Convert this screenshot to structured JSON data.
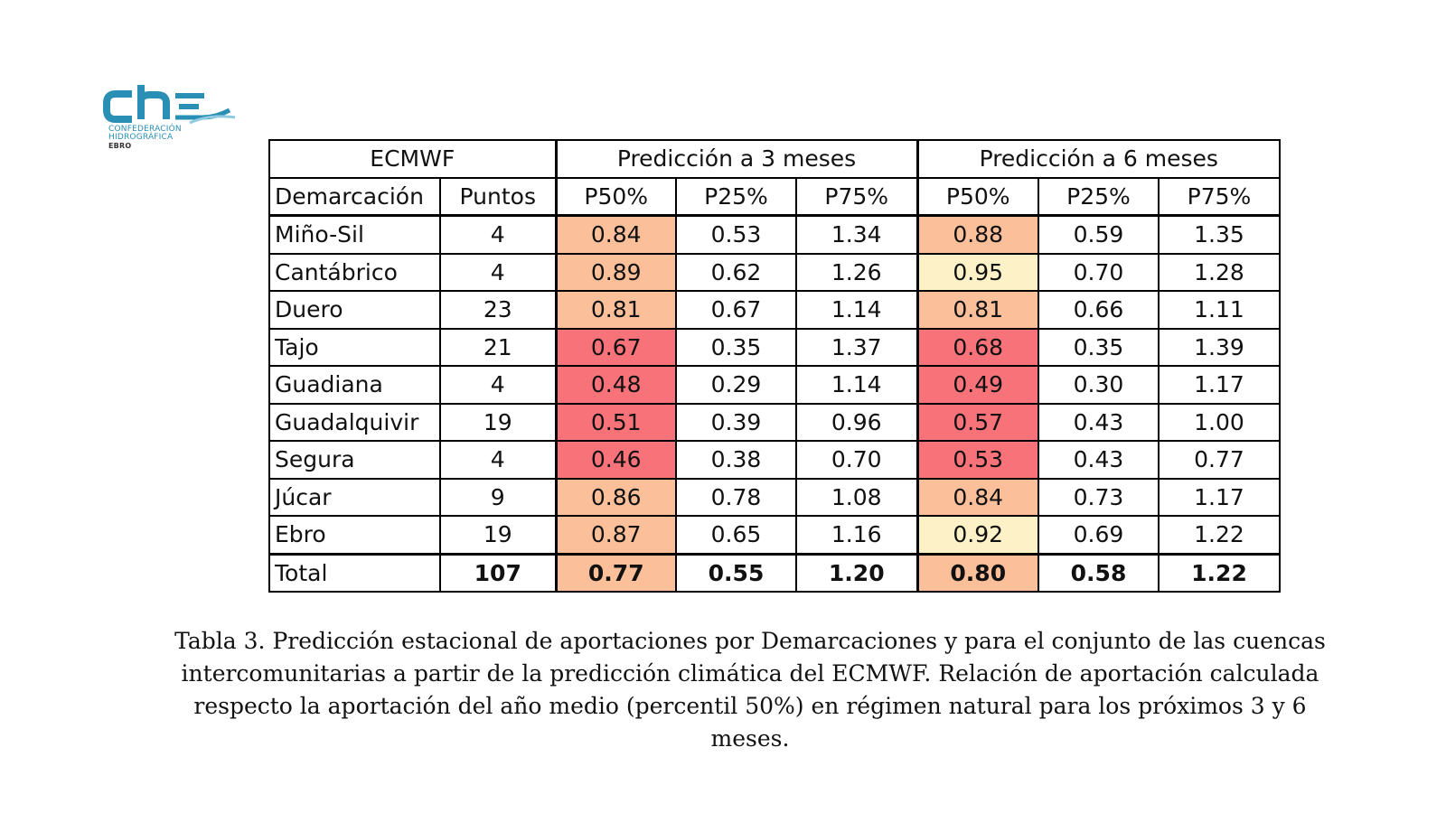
{
  "logo": {
    "text": "che",
    "line1": "CONFEDERACIÓN",
    "line2": "HIDROGRÁFICA",
    "line3": "EBRO",
    "color": "#2a8fb5"
  },
  "table": {
    "corner_label": "ECMWF",
    "group_headers": [
      "Predicción a 3 meses",
      "Predicción a 6 meses"
    ],
    "column_headers": [
      "Demarcación",
      "Puntos",
      "P50%",
      "P25%",
      "P75%",
      "P50%",
      "P25%",
      "P75%"
    ],
    "rows": [
      {
        "name": "Miño-Sil",
        "puntos": "4",
        "m3": [
          "0.84",
          "0.53",
          "1.34"
        ],
        "m6": [
          "0.88",
          "0.59",
          "1.35"
        ],
        "c3": "#fbbf9a",
        "c6": "#fbbf9a"
      },
      {
        "name": "Cantábrico",
        "puntos": "4",
        "m3": [
          "0.89",
          "0.62",
          "1.26"
        ],
        "m6": [
          "0.95",
          "0.70",
          "1.28"
        ],
        "c3": "#fbbf9a",
        "c6": "#fdf1c8"
      },
      {
        "name": "Duero",
        "puntos": "23",
        "m3": [
          "0.81",
          "0.67",
          "1.14"
        ],
        "m6": [
          "0.81",
          "0.66",
          "1.11"
        ],
        "c3": "#fbbf9a",
        "c6": "#fbbf9a"
      },
      {
        "name": "Tajo",
        "puntos": "21",
        "m3": [
          "0.67",
          "0.35",
          "1.37"
        ],
        "m6": [
          "0.68",
          "0.35",
          "1.39"
        ],
        "c3": "#f8727a",
        "c6": "#f8727a"
      },
      {
        "name": "Guadiana",
        "puntos": "4",
        "m3": [
          "0.48",
          "0.29",
          "1.14"
        ],
        "m6": [
          "0.49",
          "0.30",
          "1.17"
        ],
        "c3": "#f8727a",
        "c6": "#f8727a"
      },
      {
        "name": "Guadalquivir",
        "puntos": "19",
        "m3": [
          "0.51",
          "0.39",
          "0.96"
        ],
        "m6": [
          "0.57",
          "0.43",
          "1.00"
        ],
        "c3": "#f8727a",
        "c6": "#f8727a"
      },
      {
        "name": "Segura",
        "puntos": "4",
        "m3": [
          "0.46",
          "0.38",
          "0.70"
        ],
        "m6": [
          "0.53",
          "0.43",
          "0.77"
        ],
        "c3": "#f8727a",
        "c6": "#f8727a"
      },
      {
        "name": "Júcar",
        "puntos": "9",
        "m3": [
          "0.86",
          "0.78",
          "1.08"
        ],
        "m6": [
          "0.84",
          "0.73",
          "1.17"
        ],
        "c3": "#fbbf9a",
        "c6": "#fbbf9a"
      },
      {
        "name": "Ebro",
        "puntos": "19",
        "m3": [
          "0.87",
          "0.65",
          "1.16"
        ],
        "m6": [
          "0.92",
          "0.69",
          "1.22"
        ],
        "c3": "#fbbf9a",
        "c6": "#fdf1c8"
      }
    ],
    "total": {
      "name": "Total",
      "puntos": "107",
      "m3": [
        "0.77",
        "0.55",
        "1.20"
      ],
      "m6": [
        "0.80",
        "0.58",
        "1.22"
      ],
      "c3": "#fbbf9a",
      "c6": "#fbbf9a"
    }
  },
  "caption": "Tabla 3. Predicción estacional de aportaciones por Demarcaciones y para el conjunto de las cuencas intercomunitarias a partir de la predicción climática del ECMWF. Relación de aportación calculada respecto la aportación del año medio (percentil 50%) en régimen natural para los próximos 3 y 6 meses."
}
